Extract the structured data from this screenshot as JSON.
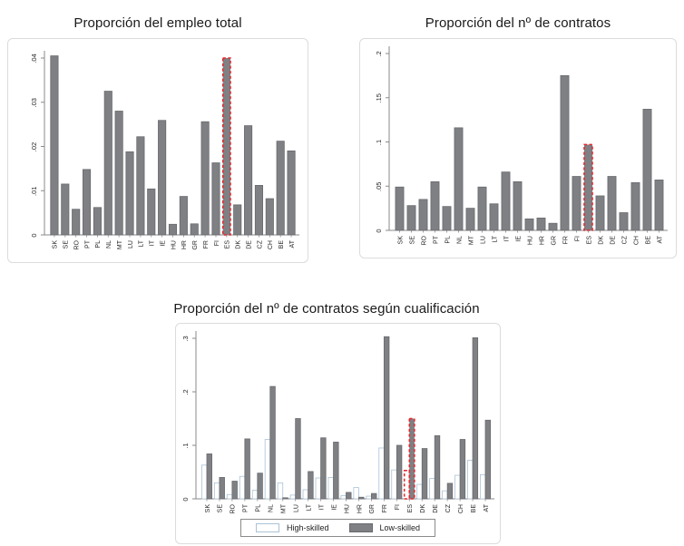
{
  "colors": {
    "bar_fill": "#7f8084",
    "bar_border": "#696a6e",
    "high_skilled_fill": "#ffffff",
    "high_skilled_border": "#a9c2d6",
    "highlight": "#e8242b",
    "axis": "#8a8a8a",
    "frame_border": "#dcdcdc",
    "text": "#262626"
  },
  "chart_data": [
    {
      "type": "bar",
      "title": "Proporción del empleo total",
      "categories": [
        "SK",
        "SE",
        "RO",
        "PT",
        "PL",
        "NL",
        "MT",
        "LU",
        "LT",
        "IT",
        "IE",
        "HU",
        "HR",
        "GR",
        "FR",
        "FI",
        "ES",
        "DK",
        "DE",
        "CZ",
        "CH",
        "BE",
        "AT"
      ],
      "values": [
        0.0405,
        0.0115,
        0.0058,
        0.0148,
        0.0062,
        0.0325,
        0.028,
        0.0188,
        0.0222,
        0.0104,
        0.0259,
        0.0024,
        0.0087,
        0.0025,
        0.0256,
        0.0163,
        0.04,
        0.0068,
        0.0247,
        0.0112,
        0.0082,
        0.0212,
        0.019
      ],
      "ylim": [
        0,
        0.04
      ],
      "yticks": [
        0,
        0.01,
        0.02,
        0.03,
        0.04
      ],
      "ytick_labels": [
        "0",
        ".01",
        ".02",
        ".03",
        ".04"
      ],
      "highlight": "ES",
      "grid": false,
      "legend_position": "none"
    },
    {
      "type": "bar",
      "title": "Proporción del nº de contratos",
      "categories": [
        "SK",
        "SE",
        "RO",
        "PT",
        "PL",
        "NL",
        "MT",
        "LU",
        "LT",
        "IT",
        "IE",
        "HU",
        "HR",
        "GR",
        "FR",
        "FI",
        "ES",
        "DK",
        "DE",
        "CZ",
        "CH",
        "BE",
        "AT"
      ],
      "values": [
        0.049,
        0.028,
        0.035,
        0.055,
        0.027,
        0.116,
        0.025,
        0.049,
        0.03,
        0.066,
        0.055,
        0.013,
        0.014,
        0.008,
        0.175,
        0.061,
        0.097,
        0.039,
        0.061,
        0.02,
        0.054,
        0.137,
        0.057
      ],
      "ylim": [
        0,
        0.2
      ],
      "yticks": [
        0,
        0.05,
        0.1,
        0.15,
        0.2
      ],
      "ytick_labels": [
        "0",
        ".05",
        ".1",
        ".15",
        ".2"
      ],
      "highlight": "ES",
      "grid": false,
      "legend_position": "none"
    },
    {
      "type": "bar",
      "title": "Proporción del nº de contratos según cualificación",
      "categories": [
        "SK",
        "SE",
        "RO",
        "PT",
        "PL",
        "NL",
        "MT",
        "LU",
        "LT",
        "IT",
        "IE",
        "HU",
        "HR",
        "GR",
        "FR",
        "FI",
        "ES",
        "DK",
        "DE",
        "CZ",
        "CH",
        "BE",
        "AT"
      ],
      "series": [
        {
          "name": "High-skilled",
          "values": [
            0.063,
            0.03,
            0.008,
            0.042,
            0.016,
            0.111,
            0.03,
            0.007,
            0.017,
            0.039,
            0.04,
            0.006,
            0.021,
            0.005,
            0.095,
            0.054,
            0.053,
            0.027,
            0.038,
            0.015,
            0.044,
            0.072,
            0.045
          ]
        },
        {
          "name": "Low-skilled",
          "values": [
            0.084,
            0.04,
            0.033,
            0.112,
            0.048,
            0.21,
            0.002,
            0.15,
            0.051,
            0.114,
            0.106,
            0.012,
            0.003,
            0.01,
            0.303,
            0.1,
            0.15,
            0.094,
            0.118,
            0.029,
            0.111,
            0.301,
            0.147
          ]
        }
      ],
      "ylim": [
        0,
        0.3
      ],
      "yticks": [
        0,
        0.1,
        0.2,
        0.3
      ],
      "ytick_labels": [
        "0",
        ".1",
        ".2",
        ".3"
      ],
      "highlight": "ES",
      "grid": false,
      "legend_position": "bottom"
    }
  ]
}
